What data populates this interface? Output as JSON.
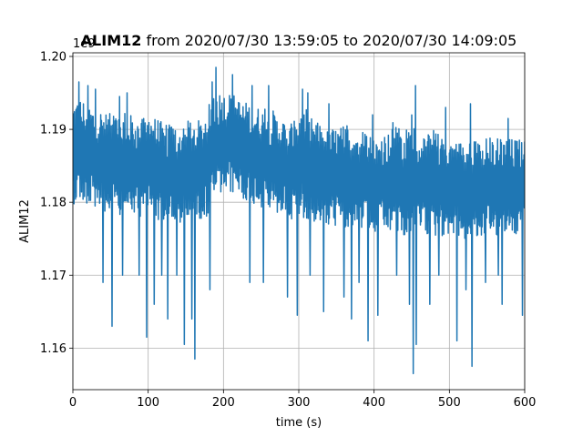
{
  "chart_data": {
    "type": "line",
    "title_channel": "ALIM12",
    "title_rest": " from 2020/07/30 13:59:05 to 2020/07/30 14:09:05",
    "xlabel": "time (s)",
    "ylabel": "ALIM12",
    "offset_text": "1e9",
    "xlim": [
      0,
      600
    ],
    "ylim": [
      1.1543,
      1.2005
    ],
    "xticks": [
      0,
      100,
      200,
      300,
      400,
      500,
      600
    ],
    "xtick_labels": [
      "0",
      "100",
      "200",
      "300",
      "400",
      "500",
      "600"
    ],
    "yticks": [
      1.16,
      1.17,
      1.18,
      1.19,
      1.2
    ],
    "ytick_labels": [
      "1.16",
      "1.17",
      "1.18",
      "1.19",
      "1.20"
    ],
    "grid": true,
    "line_color": "#1f77b4",
    "series": [
      {
        "x": [
          0,
          10,
          20,
          30,
          40,
          50,
          60,
          70,
          80,
          90,
          100,
          110,
          120,
          130,
          140,
          150,
          160,
          170,
          180,
          190,
          200,
          210,
          220,
          230,
          240,
          250,
          260,
          270,
          280,
          290,
          300,
          310,
          320,
          330,
          340,
          350,
          360,
          370,
          380,
          390,
          400,
          410,
          420,
          430,
          440,
          450,
          460,
          470,
          480,
          490,
          500,
          510,
          520,
          530,
          540,
          550,
          560,
          570,
          580,
          590,
          600
        ],
        "y_mean": [
          1.1865,
          1.187,
          1.1865,
          1.186,
          1.1855,
          1.185,
          1.185,
          1.1855,
          1.185,
          1.1845,
          1.185,
          1.1845,
          1.184,
          1.184,
          1.1835,
          1.184,
          1.1845,
          1.1845,
          1.185,
          1.1875,
          1.188,
          1.188,
          1.1875,
          1.187,
          1.1865,
          1.186,
          1.1855,
          1.185,
          1.185,
          1.1845,
          1.185,
          1.1845,
          1.184,
          1.184,
          1.1835,
          1.1835,
          1.183,
          1.183,
          1.183,
          1.1825,
          1.182,
          1.1825,
          1.1825,
          1.183,
          1.182,
          1.182,
          1.1825,
          1.1825,
          1.182,
          1.182,
          1.1825,
          1.182,
          1.1815,
          1.1815,
          1.1815,
          1.182,
          1.182,
          1.1825,
          1.182,
          1.182,
          1.1825
        ],
        "y_max": [
          1.1965,
          1.197,
          1.196,
          1.1955,
          1.195,
          1.1945,
          1.1945,
          1.195,
          1.194,
          1.1935,
          1.1945,
          1.194,
          1.1935,
          1.193,
          1.193,
          1.1935,
          1.1935,
          1.1935,
          1.196,
          1.1985,
          1.1975,
          1.1975,
          1.1965,
          1.196,
          1.196,
          1.195,
          1.196,
          1.1945,
          1.1935,
          1.1935,
          1.1945,
          1.1955,
          1.1935,
          1.193,
          1.1925,
          1.1925,
          1.193,
          1.195,
          1.1925,
          1.192,
          1.1915,
          1.192,
          1.192,
          1.196,
          1.1915,
          1.196,
          1.1915,
          1.1915,
          1.193,
          1.191,
          1.191,
          1.191,
          1.191,
          1.1915,
          1.1905,
          1.1915,
          1.191,
          1.1915,
          1.191,
          1.191,
          1.1905
        ],
        "y_min": [
          1.1755,
          1.1745,
          1.176,
          1.173,
          1.1705,
          1.163,
          1.169,
          1.171,
          1.174,
          1.172,
          1.166,
          1.1705,
          1.172,
          1.164,
          1.17,
          1.169,
          1.1635,
          1.1715,
          1.172,
          1.1745,
          1.177,
          1.176,
          1.1715,
          1.173,
          1.1725,
          1.169,
          1.171,
          1.169,
          1.17,
          1.1645,
          1.166,
          1.17,
          1.169,
          1.17,
          1.169,
          1.165,
          1.167,
          1.166,
          1.169,
          1.169,
          1.1665,
          1.17,
          1.17,
          1.17,
          1.169,
          1.1565,
          1.164,
          1.171,
          1.17,
          1.171,
          1.1705,
          1.17,
          1.169,
          1.1575,
          1.168,
          1.169,
          1.169,
          1.17,
          1.17,
          1.17,
          1.1645
        ]
      }
    ],
    "spikes_low": [
      [
        40,
        1.169
      ],
      [
        52,
        1.163
      ],
      [
        66,
        1.17
      ],
      [
        88,
        1.17
      ],
      [
        98,
        1.1615
      ],
      [
        108,
        1.166
      ],
      [
        118,
        1.17
      ],
      [
        126,
        1.164
      ],
      [
        138,
        1.17
      ],
      [
        148,
        1.1605
      ],
      [
        158,
        1.164
      ],
      [
        162,
        1.1585
      ],
      [
        182,
        1.168
      ],
      [
        235,
        1.169
      ],
      [
        253,
        1.169
      ],
      [
        285,
        1.167
      ],
      [
        298,
        1.1645
      ],
      [
        315,
        1.17
      ],
      [
        333,
        1.165
      ],
      [
        360,
        1.167
      ],
      [
        370,
        1.164
      ],
      [
        380,
        1.169
      ],
      [
        392,
        1.161
      ],
      [
        405,
        1.1645
      ],
      [
        430,
        1.17
      ],
      [
        447,
        1.166
      ],
      [
        452,
        1.1565
      ],
      [
        456,
        1.1605
      ],
      [
        474,
        1.166
      ],
      [
        486,
        1.17
      ],
      [
        510,
        1.161
      ],
      [
        522,
        1.168
      ],
      [
        530,
        1.1575
      ],
      [
        548,
        1.169
      ],
      [
        565,
        1.17
      ],
      [
        570,
        1.166
      ],
      [
        597,
        1.1645
      ]
    ],
    "spikes_high": [
      [
        8,
        1.1965
      ],
      [
        20,
        1.196
      ],
      [
        30,
        1.1955
      ],
      [
        62,
        1.1945
      ],
      [
        72,
        1.195
      ],
      [
        108,
        1.195
      ],
      [
        185,
        1.1965
      ],
      [
        190,
        1.1985
      ],
      [
        212,
        1.1975
      ],
      [
        238,
        1.196
      ],
      [
        260,
        1.196
      ],
      [
        298,
        1.196
      ],
      [
        305,
        1.1955
      ],
      [
        312,
        1.195
      ],
      [
        340,
        1.1935
      ],
      [
        370,
        1.195
      ],
      [
        398,
        1.192
      ],
      [
        430,
        1.196
      ],
      [
        455,
        1.196
      ],
      [
        495,
        1.193
      ],
      [
        528,
        1.1935
      ],
      [
        548,
        1.1915
      ],
      [
        578,
        1.1915
      ]
    ]
  }
}
